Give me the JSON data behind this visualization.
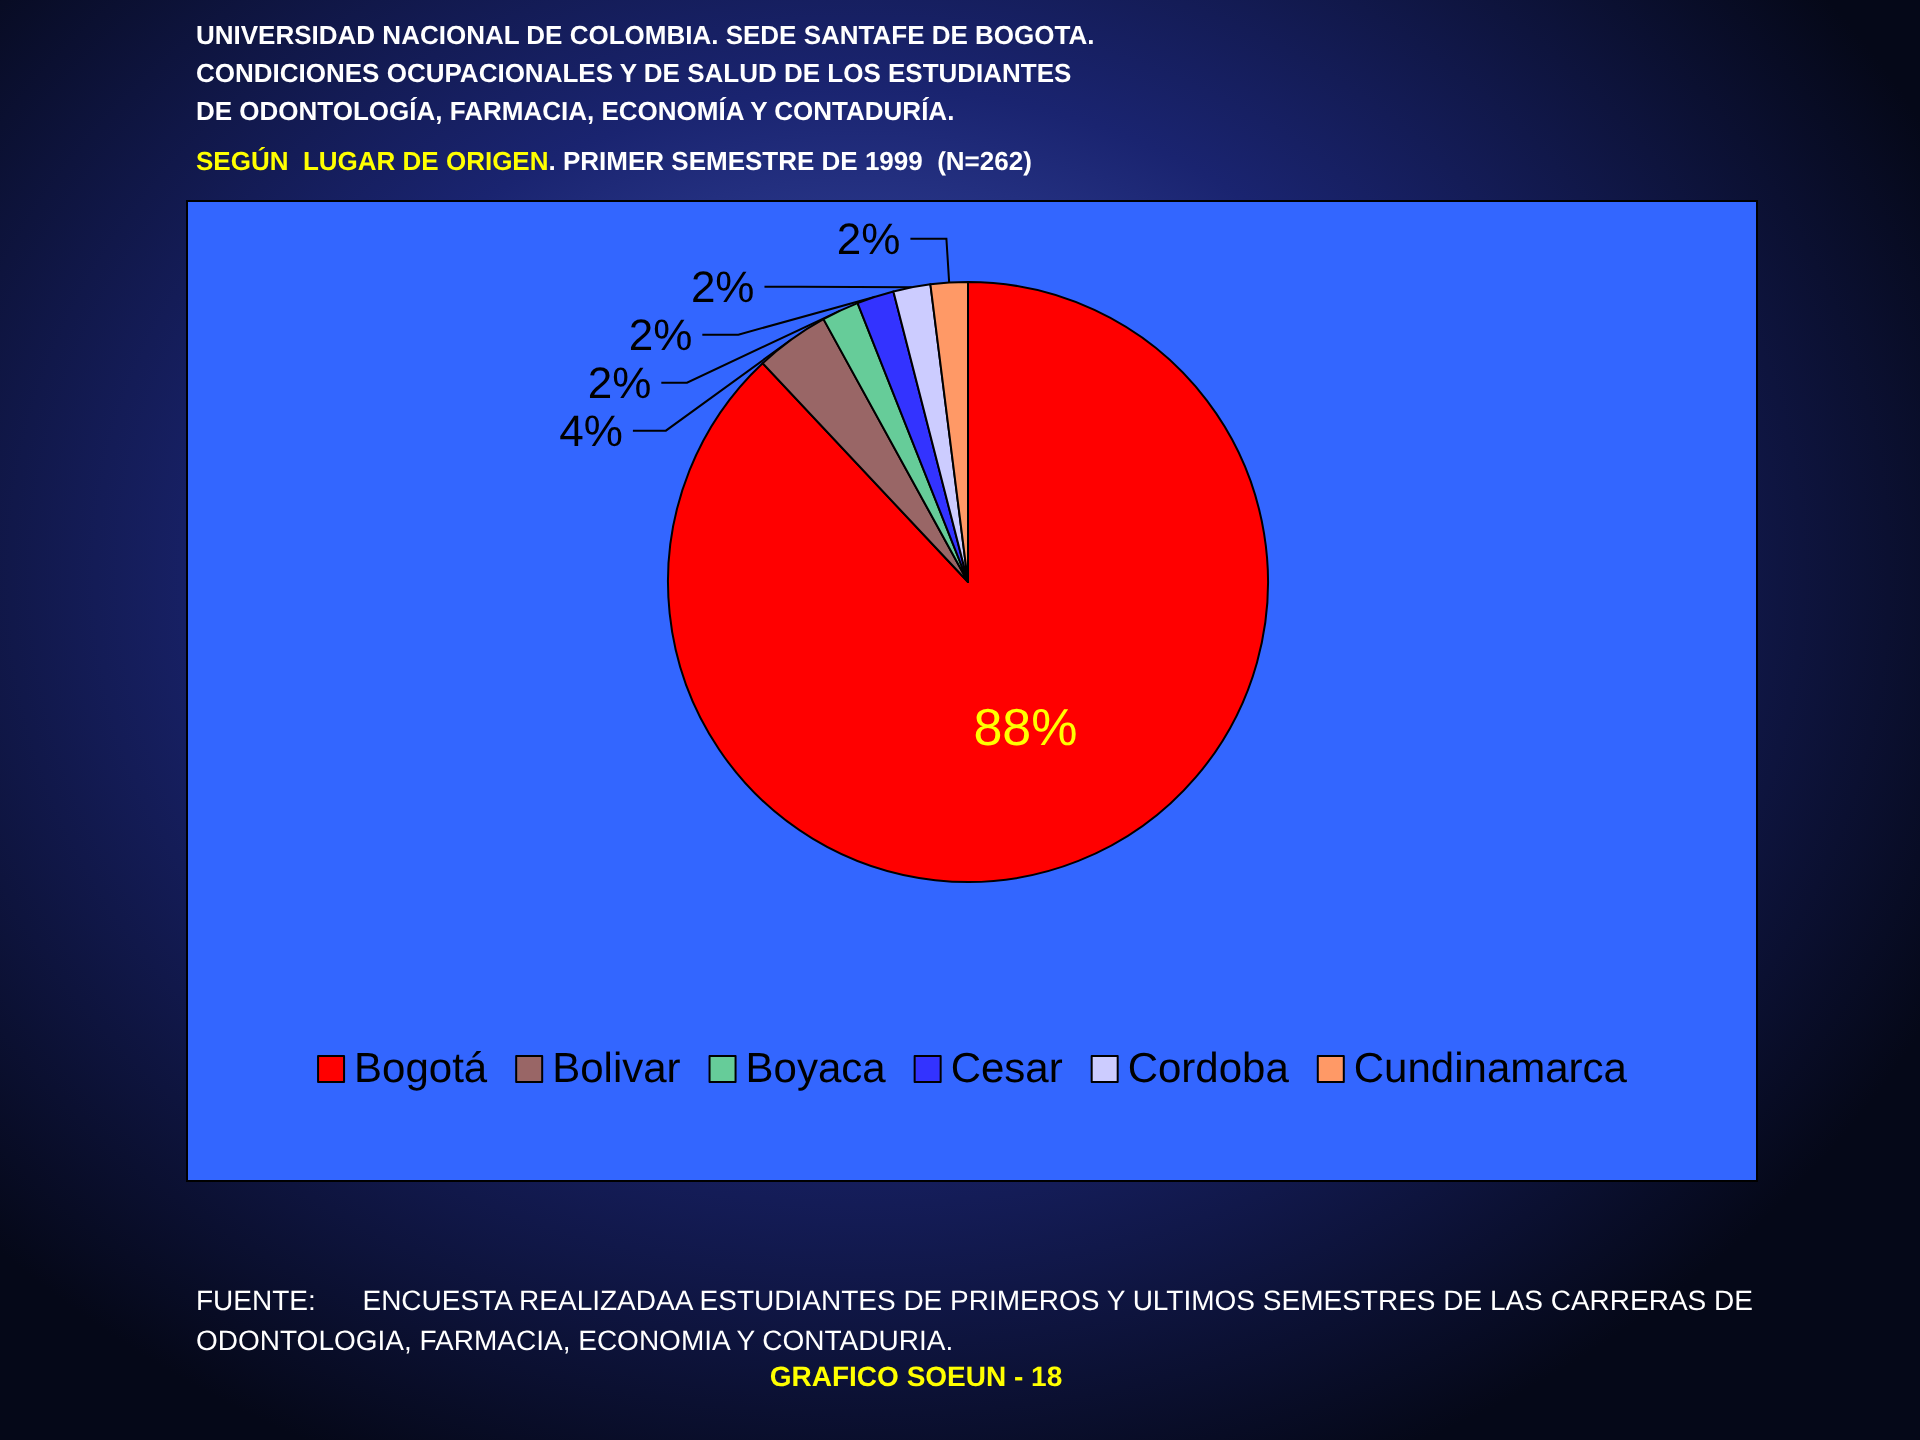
{
  "chart_data": {
    "type": "pie",
    "title": "UNIVERSIDAD NACIONAL DE COLOMBIA. SEDE SANTAFE DE BOGOTA.\nCONDICIONES OCUPACIONALES Y DE SALUD DE LOS ESTUDIANTES\nDE ODONTOLOGÍA, FARMACIA, ECONOMÍA Y CONTADURÍA.",
    "subtitle": "SEGÚN  LUGAR DE ORIGEN. PRIMER SEMESTRE DE 1999  (N=262)",
    "categories": [
      "Bogotá",
      "Bolivar",
      "Boyaca",
      "Cesar",
      "Cordoba",
      "Cundinamarca"
    ],
    "values": [
      88,
      4,
      2,
      2,
      2,
      2
    ],
    "colors": [
      "#ff0000",
      "#996666",
      "#66cc99",
      "#3333ff",
      "#ccccff",
      "#ff9966"
    ],
    "value_labels": [
      "88%",
      "4%",
      "2%",
      "2%",
      "2%",
      "2%"
    ],
    "legend": "bottom",
    "annotations": [
      "FUENTE:      ENCUESTA REALIZADAA ESTUDIANTES DE PRIMEROS Y ULTIMOS SEMESTRES DE LAS CARRERAS DE ODONTOLOGIA, FARMACIA, ECONOMIA Y CONTADURIA.",
      "GRAFICO SOEUN - 18"
    ]
  }
}
